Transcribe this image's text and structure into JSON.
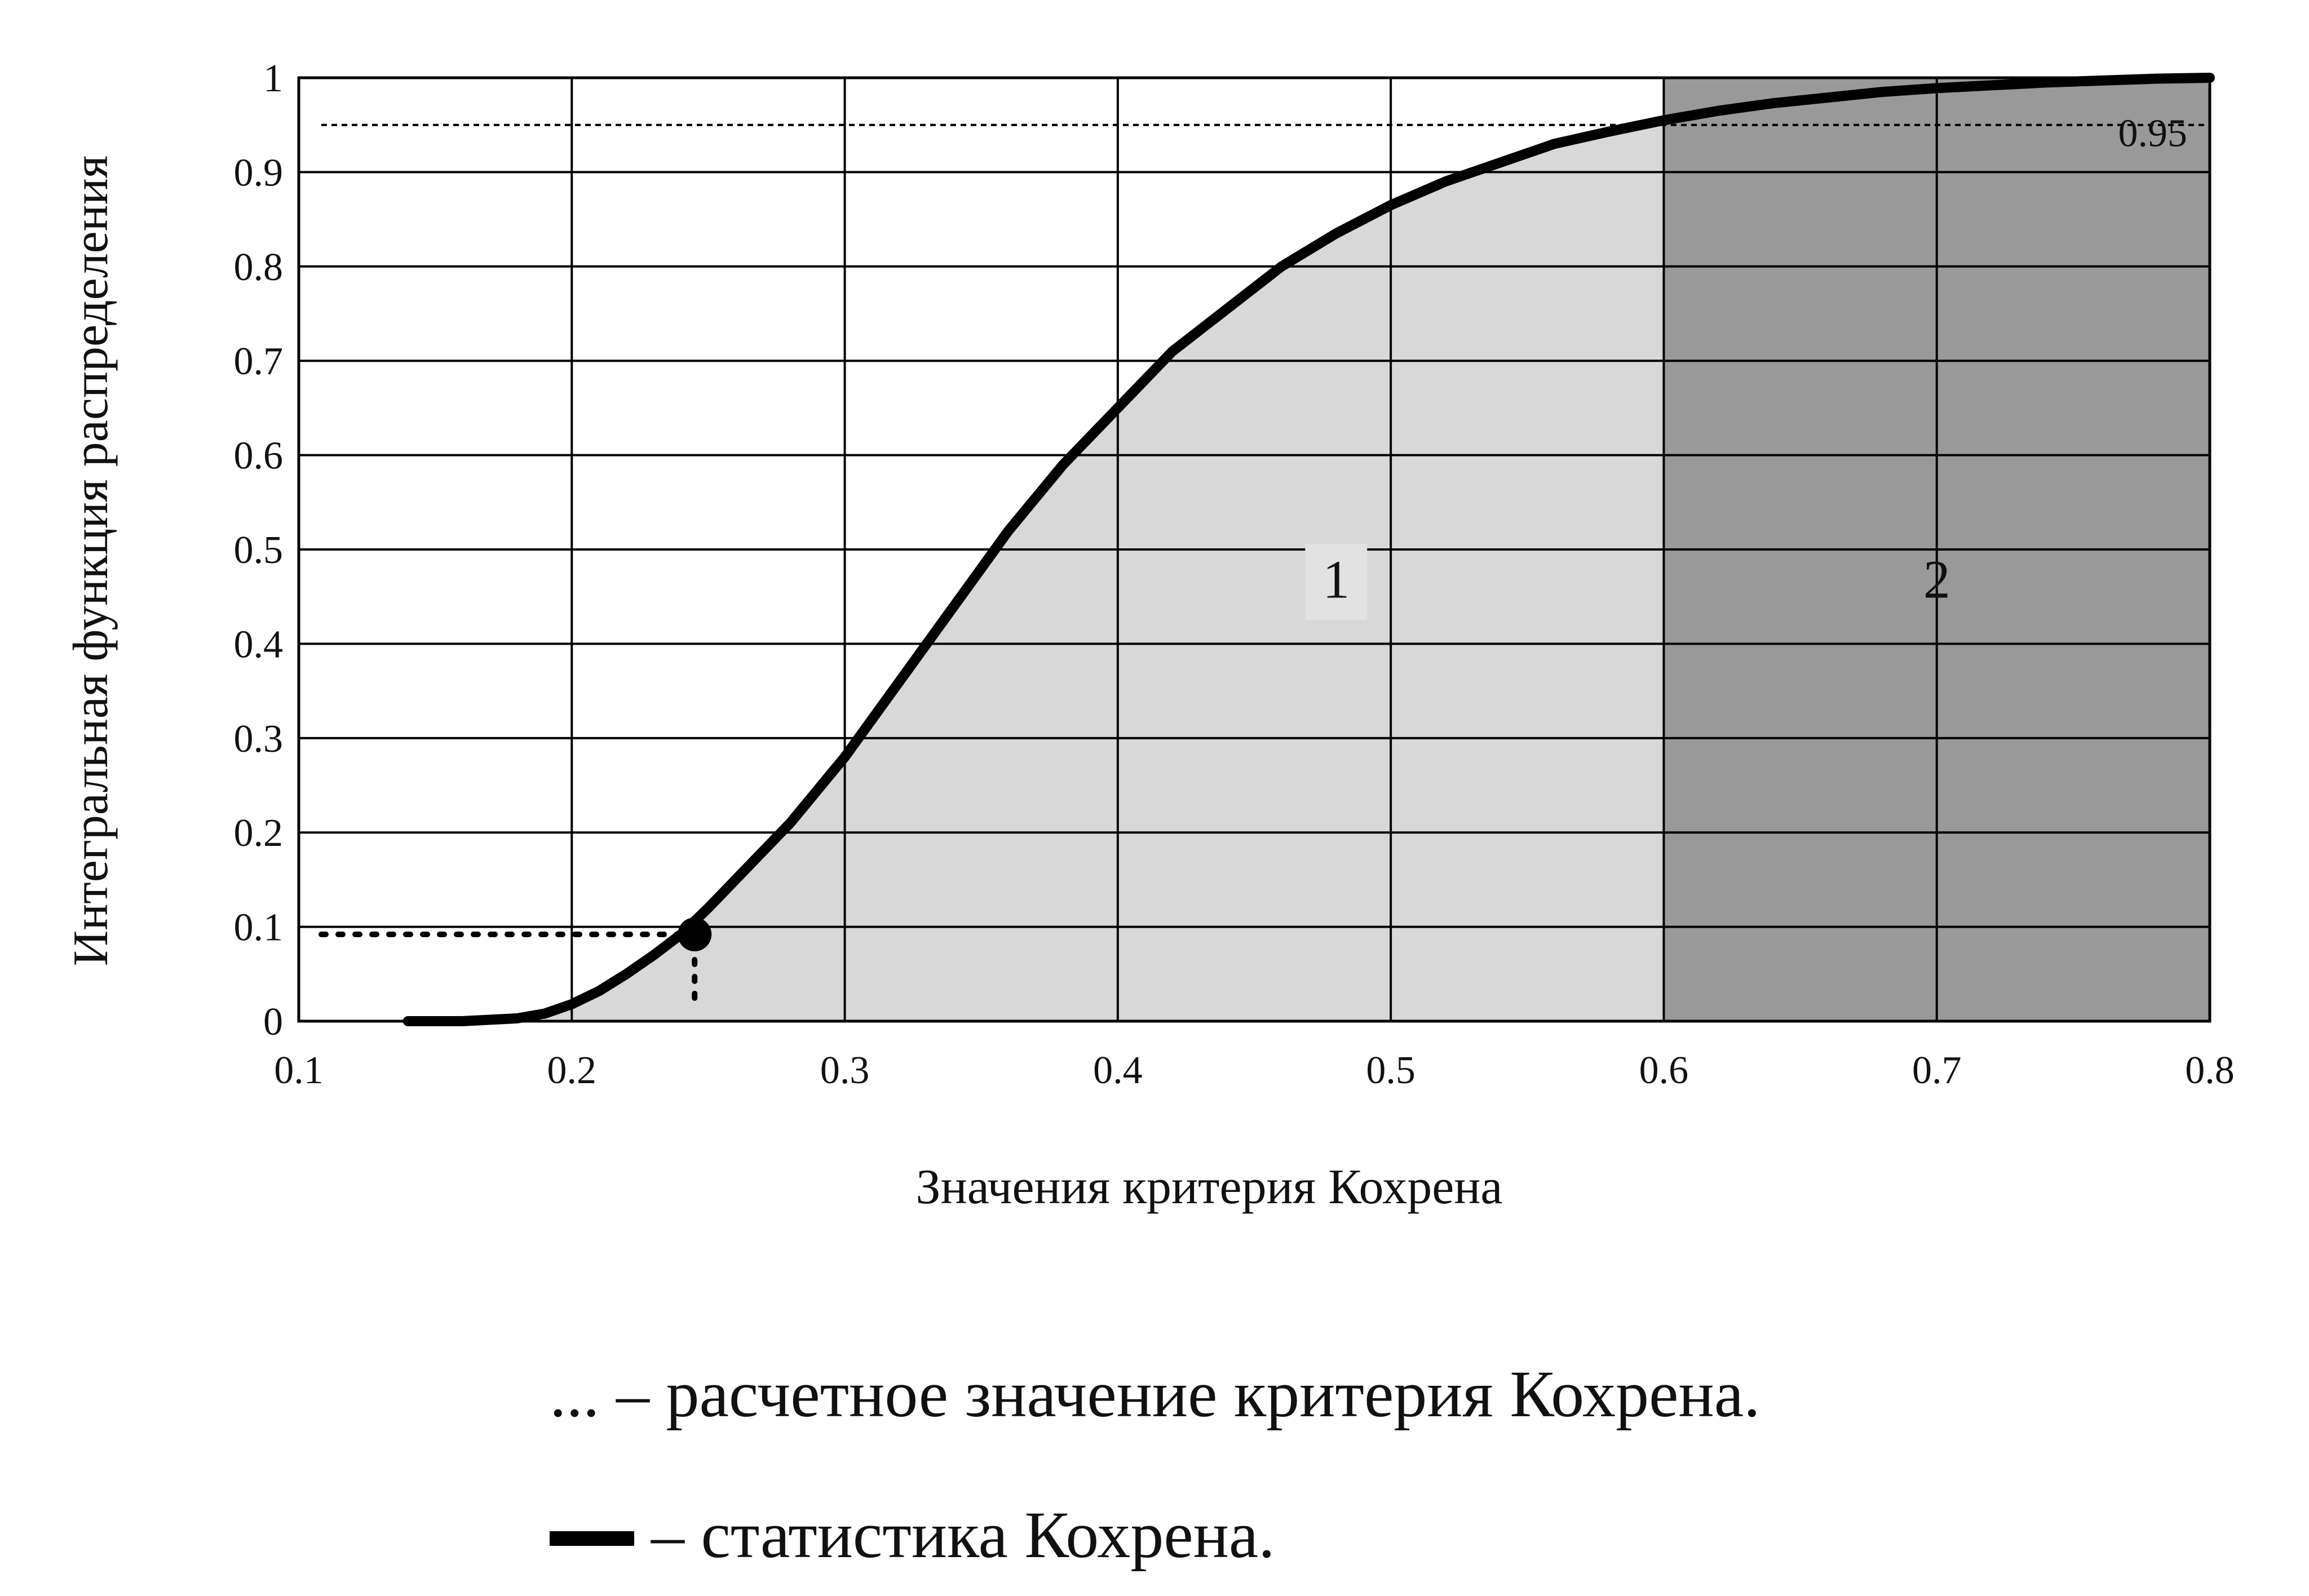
{
  "chart_data": {
    "type": "area",
    "title": "",
    "xlabel": "Значения критерия Кохрена",
    "ylabel": "Интегральная функция распределения",
    "xlim": [
      0.1,
      0.8
    ],
    "ylim": [
      0,
      1
    ],
    "x_ticks": [
      "0.1",
      "0.2",
      "0.3",
      "0.4",
      "0.5",
      "0.6",
      "0.7",
      "0.8"
    ],
    "y_ticks": [
      "0",
      "0.1",
      "0.2",
      "0.3",
      "0.4",
      "0.5",
      "0.6",
      "0.7",
      "0.8",
      "0.9",
      "1"
    ],
    "grid": true,
    "series": [
      {
        "name": "статистика Кохрена",
        "x": [
          0.14,
          0.16,
          0.18,
          0.19,
          0.2,
          0.21,
          0.22,
          0.23,
          0.24,
          0.25,
          0.26,
          0.28,
          0.3,
          0.32,
          0.34,
          0.36,
          0.38,
          0.4,
          0.42,
          0.44,
          0.46,
          0.48,
          0.5,
          0.52,
          0.54,
          0.56,
          0.58,
          0.6,
          0.62,
          0.64,
          0.66,
          0.68,
          0.7,
          0.72,
          0.74,
          0.76,
          0.78,
          0.8
        ],
        "y": [
          0.0,
          0.0,
          0.003,
          0.008,
          0.018,
          0.032,
          0.05,
          0.07,
          0.092,
          0.12,
          0.15,
          0.21,
          0.28,
          0.36,
          0.44,
          0.52,
          0.59,
          0.65,
          0.71,
          0.755,
          0.8,
          0.835,
          0.865,
          0.89,
          0.91,
          0.93,
          0.943,
          0.955,
          0.965,
          0.973,
          0.979,
          0.985,
          0.989,
          0.992,
          0.995,
          0.997,
          0.999,
          1.0
        ]
      }
    ],
    "regions": [
      {
        "label": "1",
        "x_range": [
          0.19,
          0.6
        ],
        "color": "#d8d8d8"
      },
      {
        "label": "2",
        "x_range": [
          0.6,
          0.8
        ],
        "color": "#999999"
      }
    ],
    "threshold": {
      "y": 0.95,
      "label": "0.95"
    },
    "computed_point": {
      "x": 0.245,
      "y": 0.092
    },
    "annotations": []
  },
  "legend": {
    "dotted_symbol": "...",
    "dotted_text": "– расчетное значение критерия Кохрена.",
    "solid_text": "– статистика Кохрена."
  }
}
